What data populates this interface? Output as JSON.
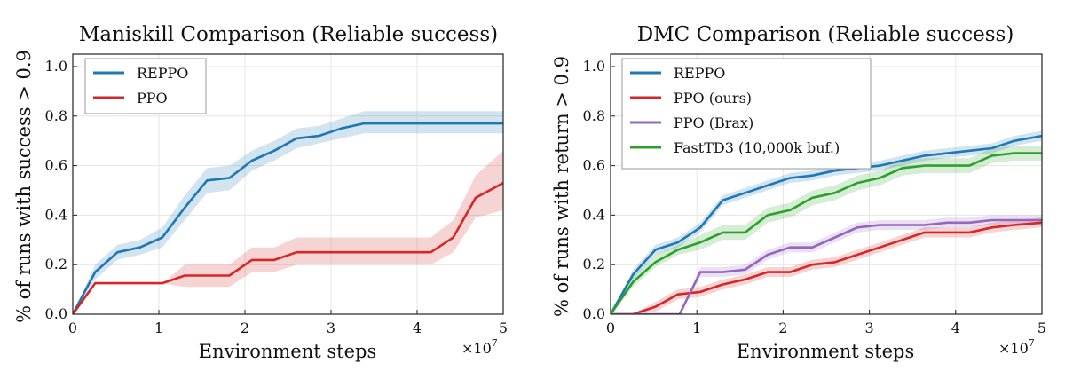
{
  "chart_data": [
    {
      "type": "line",
      "title": "Maniskill Comparison (Reliable success)",
      "xlabel": "Environment steps",
      "ylabel": "% of runs with success > 0.9",
      "x_scale_label": {
        "base": "×10",
        "exp": "7"
      },
      "xlim": [
        0,
        5
      ],
      "ylim": [
        0,
        1.05
      ],
      "xticks": [
        "0",
        "1",
        "2",
        "3",
        "4",
        "5"
      ],
      "yticks": [
        "0.0",
        "0.2",
        "0.4",
        "0.6",
        "0.8",
        "1.0"
      ],
      "grid": true,
      "legend": "top-left",
      "series": [
        {
          "name": "REPPO",
          "color": "#1f77b4",
          "x": [
            0,
            0.26,
            0.52,
            0.78,
            1.04,
            1.3,
            1.56,
            1.82,
            2.08,
            2.34,
            2.6,
            2.86,
            3.12,
            3.38,
            3.64,
            3.9,
            4.16,
            4.42,
            4.68,
            5.0
          ],
          "y": [
            0,
            0.17,
            0.25,
            0.27,
            0.31,
            0.43,
            0.54,
            0.55,
            0.62,
            0.66,
            0.71,
            0.72,
            0.75,
            0.77,
            0.77,
            0.77,
            0.77,
            0.77,
            0.77,
            0.77
          ],
          "lo": [
            0,
            0.14,
            0.22,
            0.24,
            0.27,
            0.38,
            0.49,
            0.5,
            0.58,
            0.62,
            0.67,
            0.69,
            0.71,
            0.73,
            0.73,
            0.73,
            0.73,
            0.73,
            0.73,
            0.73
          ],
          "hi": [
            0,
            0.2,
            0.28,
            0.3,
            0.35,
            0.48,
            0.59,
            0.6,
            0.66,
            0.7,
            0.75,
            0.76,
            0.79,
            0.82,
            0.82,
            0.82,
            0.82,
            0.82,
            0.82,
            0.82
          ]
        },
        {
          "name": "PPO",
          "color": "#d62728",
          "x": [
            0,
            0.26,
            0.52,
            0.78,
            1.04,
            1.3,
            1.56,
            1.82,
            2.08,
            2.34,
            2.6,
            2.86,
            3.12,
            3.38,
            3.64,
            3.9,
            4.16,
            4.42,
            4.68,
            5.0
          ],
          "y": [
            0,
            0.125,
            0.125,
            0.125,
            0.125,
            0.156,
            0.156,
            0.156,
            0.219,
            0.219,
            0.25,
            0.25,
            0.25,
            0.25,
            0.25,
            0.25,
            0.25,
            0.31,
            0.47,
            0.53
          ],
          "lo": [
            0,
            0.125,
            0.125,
            0.125,
            0.125,
            0.11,
            0.11,
            0.11,
            0.17,
            0.17,
            0.2,
            0.2,
            0.2,
            0.2,
            0.2,
            0.2,
            0.2,
            0.25,
            0.39,
            0.42
          ],
          "hi": [
            0,
            0.125,
            0.125,
            0.125,
            0.125,
            0.2,
            0.2,
            0.2,
            0.27,
            0.27,
            0.31,
            0.31,
            0.31,
            0.31,
            0.31,
            0.31,
            0.31,
            0.38,
            0.56,
            0.66
          ]
        }
      ]
    },
    {
      "type": "line",
      "title": "DMC Comparison (Reliable success)",
      "xlabel": "Environment steps",
      "ylabel": "% of runs with return > 0.9",
      "x_scale_label": {
        "base": "×10",
        "exp": "7"
      },
      "xlim": [
        0,
        5
      ],
      "ylim": [
        0,
        1.05
      ],
      "xticks": [
        "0",
        "1",
        "2",
        "3",
        "4",
        "5"
      ],
      "yticks": [
        "0.0",
        "0.2",
        "0.4",
        "0.6",
        "0.8",
        "1.0"
      ],
      "grid": true,
      "legend": "top-left",
      "series": [
        {
          "name": "REPPO",
          "color": "#1f77b4",
          "x": [
            0,
            0.26,
            0.52,
            0.78,
            1.04,
            1.3,
            1.56,
            1.82,
            2.08,
            2.34,
            2.6,
            2.86,
            3.12,
            3.38,
            3.64,
            3.9,
            4.16,
            4.42,
            4.68,
            5.0
          ],
          "y": [
            0,
            0.16,
            0.26,
            0.29,
            0.35,
            0.46,
            0.49,
            0.52,
            0.55,
            0.56,
            0.58,
            0.59,
            0.6,
            0.62,
            0.64,
            0.65,
            0.66,
            0.67,
            0.7,
            0.72
          ],
          "lo": [
            0,
            0.14,
            0.24,
            0.27,
            0.33,
            0.44,
            0.47,
            0.5,
            0.53,
            0.54,
            0.56,
            0.57,
            0.58,
            0.6,
            0.62,
            0.63,
            0.64,
            0.65,
            0.68,
            0.7
          ],
          "hi": [
            0,
            0.18,
            0.28,
            0.31,
            0.37,
            0.48,
            0.51,
            0.54,
            0.57,
            0.58,
            0.6,
            0.61,
            0.62,
            0.64,
            0.66,
            0.67,
            0.68,
            0.69,
            0.72,
            0.74
          ]
        },
        {
          "name": "PPO (ours)",
          "color": "#d62728",
          "x": [
            0,
            0.26,
            0.52,
            0.78,
            1.04,
            1.3,
            1.56,
            1.82,
            2.08,
            2.34,
            2.6,
            2.86,
            3.12,
            3.38,
            3.64,
            3.9,
            4.16,
            4.42,
            4.68,
            5.0
          ],
          "y": [
            0,
            0,
            0.03,
            0.08,
            0.09,
            0.12,
            0.14,
            0.17,
            0.17,
            0.2,
            0.21,
            0.24,
            0.27,
            0.3,
            0.33,
            0.33,
            0.33,
            0.35,
            0.36,
            0.37
          ],
          "lo": [
            0,
            0,
            0.01,
            0.06,
            0.07,
            0.1,
            0.12,
            0.15,
            0.15,
            0.18,
            0.19,
            0.22,
            0.25,
            0.28,
            0.31,
            0.31,
            0.31,
            0.33,
            0.34,
            0.35
          ],
          "hi": [
            0,
            0,
            0.05,
            0.1,
            0.11,
            0.14,
            0.16,
            0.19,
            0.19,
            0.22,
            0.23,
            0.26,
            0.29,
            0.32,
            0.35,
            0.35,
            0.35,
            0.37,
            0.38,
            0.39
          ]
        },
        {
          "name": "PPO (Brax)",
          "color": "#9467bd",
          "x": [
            0,
            0.78,
            0.8,
            1.04,
            1.3,
            1.56,
            1.82,
            2.08,
            2.34,
            2.6,
            2.86,
            3.12,
            3.38,
            3.64,
            3.9,
            4.16,
            4.42,
            4.68,
            5.0
          ],
          "y": [
            0,
            0,
            0,
            0.17,
            0.17,
            0.18,
            0.24,
            0.27,
            0.27,
            0.31,
            0.35,
            0.36,
            0.36,
            0.36,
            0.37,
            0.37,
            0.38,
            0.38,
            0.38
          ],
          "lo": [
            0,
            0,
            0,
            0.15,
            0.15,
            0.16,
            0.22,
            0.25,
            0.25,
            0.29,
            0.33,
            0.34,
            0.34,
            0.34,
            0.35,
            0.35,
            0.36,
            0.36,
            0.36
          ],
          "hi": [
            0,
            0,
            0,
            0.19,
            0.19,
            0.2,
            0.26,
            0.29,
            0.29,
            0.33,
            0.37,
            0.38,
            0.38,
            0.38,
            0.39,
            0.39,
            0.4,
            0.4,
            0.4
          ]
        },
        {
          "name": "FastTD3 (10,000k buf.)",
          "color": "#2ca02c",
          "x": [
            0,
            0.26,
            0.52,
            0.78,
            1.04,
            1.3,
            1.56,
            1.82,
            2.08,
            2.34,
            2.6,
            2.86,
            3.12,
            3.38,
            3.64,
            3.9,
            4.16,
            4.42,
            4.68,
            5.0
          ],
          "y": [
            0,
            0.13,
            0.21,
            0.26,
            0.29,
            0.33,
            0.33,
            0.4,
            0.42,
            0.47,
            0.49,
            0.53,
            0.55,
            0.59,
            0.6,
            0.6,
            0.6,
            0.64,
            0.65,
            0.65
          ],
          "lo": [
            0,
            0.11,
            0.19,
            0.24,
            0.26,
            0.3,
            0.3,
            0.37,
            0.39,
            0.44,
            0.46,
            0.5,
            0.52,
            0.56,
            0.57,
            0.57,
            0.57,
            0.61,
            0.62,
            0.62
          ],
          "hi": [
            0,
            0.15,
            0.24,
            0.28,
            0.32,
            0.36,
            0.36,
            0.43,
            0.45,
            0.5,
            0.52,
            0.56,
            0.58,
            0.62,
            0.63,
            0.63,
            0.63,
            0.67,
            0.68,
            0.68
          ]
        }
      ]
    }
  ]
}
